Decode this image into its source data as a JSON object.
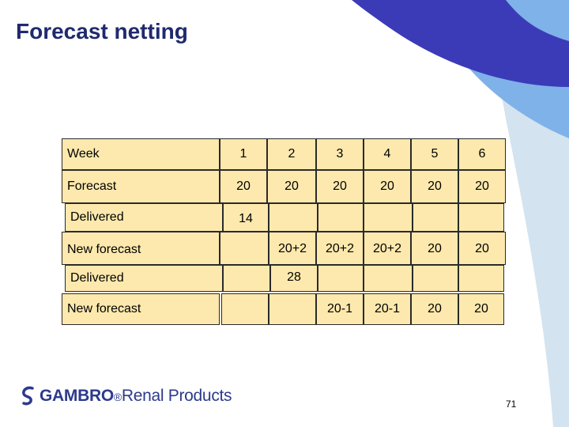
{
  "slide": {
    "title": "Forecast netting",
    "page_number": "71"
  },
  "logo": {
    "brand": "GAMBRO",
    "suffix": "Renal Products"
  },
  "table": {
    "rows": [
      {
        "label": "Week",
        "cells": [
          "1",
          "2",
          "3",
          "4",
          "5",
          "6"
        ]
      },
      {
        "label": "Forecast",
        "cells": [
          "20",
          "20",
          "20",
          "20",
          "20",
          "20"
        ]
      },
      {
        "label": "Delivered",
        "cells": [
          "14",
          "",
          "",
          "",
          "",
          ""
        ]
      },
      {
        "label": "New forecast",
        "cells": [
          "",
          "20+2",
          "20+2",
          "20+2",
          "20",
          "20"
        ]
      },
      {
        "label": "Delivered",
        "cells": [
          "",
          "28",
          "",
          "",
          "",
          ""
        ]
      },
      {
        "label": "New forecast",
        "cells": [
          "",
          "",
          "20-1",
          "20-1",
          "20",
          "20"
        ]
      }
    ]
  },
  "colors": {
    "cell_fill": "#fde9ad",
    "title": "#1f2a6e",
    "accent_dark_blue": "#3b3bb8",
    "accent_light_blue": "#7fb2e8",
    "accent_pale_blue": "#cfe1ef"
  }
}
